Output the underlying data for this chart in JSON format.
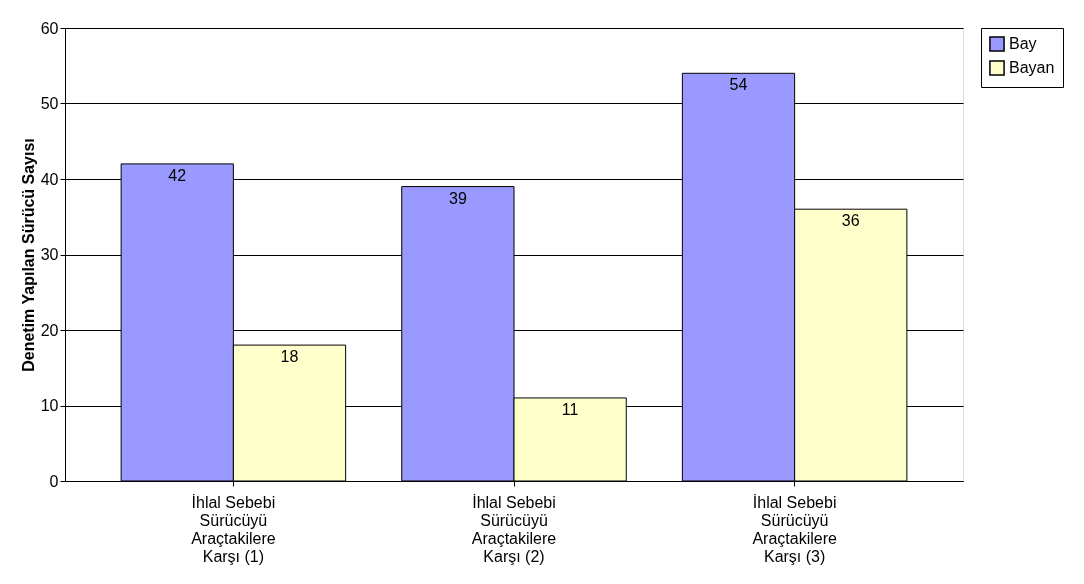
{
  "chart_data": {
    "type": "bar",
    "ylabel": "Denetim Yapılan Sürücü Sayısı",
    "categories": [
      "İhlal Sebebi Sürücüyü Araçtakilere Karşı (1)",
      "İhlal Sebebi Sürücüyü Araçtakilere Karşı (2)",
      "İhlal Sebebi Sürücüyü Araçtakilere Karşı (3)"
    ],
    "series": [
      {
        "name": "Bay",
        "color": "#9999ff",
        "values": [
          42,
          39,
          54
        ]
      },
      {
        "name": "Bayan",
        "color": "#ffffcc",
        "values": [
          18,
          11,
          36
        ]
      }
    ],
    "ylim": [
      0,
      60
    ],
    "yticks": [
      0,
      10,
      20,
      30,
      40,
      50,
      60
    ],
    "grid": "y",
    "legend": "top right",
    "data_labels": true
  }
}
